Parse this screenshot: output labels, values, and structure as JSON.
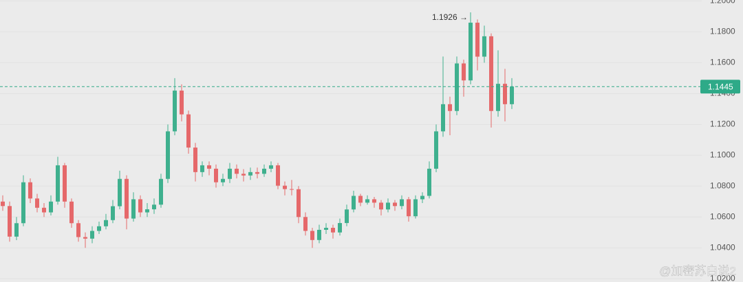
{
  "chart_data": {
    "type": "candlestick",
    "up_color": "#3fb08e",
    "down_color": "#e5686a",
    "ylim": [
      1.0179,
      1.2006
    ],
    "yticks": [
      {
        "value": 1.02,
        "label": "1.0200"
      },
      {
        "value": 1.04,
        "label": "1.0400"
      },
      {
        "value": 1.06,
        "label": "1.0600"
      },
      {
        "value": 1.08,
        "label": "1.0800"
      },
      {
        "value": 1.1,
        "label": "1.1000"
      },
      {
        "value": 1.12,
        "label": "1.1200"
      },
      {
        "value": 1.14,
        "label": "1.1400"
      },
      {
        "value": 1.16,
        "label": "1.1600"
      },
      {
        "value": 1.18,
        "label": "1.1800"
      },
      {
        "value": 1.2,
        "label": "1.2000"
      }
    ],
    "open": [
      1.07,
      1.0671,
      1.0473,
      1.056,
      1.0825,
      1.072,
      1.066,
      1.063,
      1.07,
      1.0935,
      1.07,
      1.056,
      1.047,
      1.046,
      1.051,
      1.054,
      1.058,
      1.067,
      1.0847,
      1.059,
      1.0715,
      1.063,
      1.065,
      1.068,
      1.0847,
      1.1155,
      1.1419,
      1.1265,
      1.105,
      1.0891,
      1.0935,
      1.0913,
      1.0825,
      1.0847,
      1.0913,
      1.088,
      1.0869,
      1.0891,
      1.088,
      1.0913,
      1.0935,
      1.0803,
      1.0781,
      1.078,
      1.06,
      1.051,
      1.0451,
      1.0517,
      1.053,
      1.05,
      1.0561,
      1.0649,
      1.0737,
      1.0693,
      1.0715,
      1.0693,
      1.0649,
      1.0693,
      1.0671,
      1.0715,
      1.0605,
      1.0715,
      1.0737,
      1.0913,
      1.1155,
      1.1331,
      1.1287,
      1.1595,
      1.1485,
      1.1859,
      1.1639,
      1.1771,
      1.1287,
      1.1463,
      1.1331
    ],
    "high": [
      1.074,
      1.07,
      1.06,
      1.087,
      1.085,
      1.075,
      1.069,
      1.074,
      1.099,
      1.095,
      1.072,
      1.058,
      1.05,
      1.054,
      1.057,
      1.062,
      1.071,
      1.09,
      1.087,
      1.076,
      1.074,
      1.069,
      1.072,
      1.088,
      1.12,
      1.15,
      1.146,
      1.129,
      1.108,
      1.096,
      1.096,
      1.094,
      1.088,
      1.095,
      1.094,
      1.091,
      1.092,
      1.092,
      1.094,
      1.096,
      1.095,
      1.083,
      1.084,
      1.08,
      1.063,
      1.053,
      1.055,
      1.056,
      1.055,
      1.059,
      1.068,
      1.077,
      1.075,
      1.074,
      1.073,
      1.071,
      1.072,
      1.071,
      1.074,
      1.073,
      1.074,
      1.076,
      1.096,
      1.12,
      1.164,
      1.138,
      1.164,
      1.162,
      1.1926,
      1.188,
      1.184,
      1.179,
      1.168,
      1.156,
      1.15
    ],
    "low": [
      1.064,
      1.044,
      1.045,
      1.054,
      1.069,
      1.063,
      1.06,
      1.061,
      1.068,
      1.066,
      1.053,
      1.044,
      1.04,
      1.043,
      1.049,
      1.052,
      1.056,
      1.065,
      1.052,
      1.057,
      1.06,
      1.06,
      1.062,
      1.066,
      1.082,
      1.113,
      1.122,
      1.101,
      1.083,
      1.086,
      1.087,
      1.079,
      1.08,
      1.082,
      1.085,
      1.083,
      1.084,
      1.085,
      1.086,
      1.089,
      1.078,
      1.074,
      1.074,
      1.056,
      1.048,
      1.04,
      1.043,
      1.049,
      1.046,
      1.048,
      1.054,
      1.063,
      1.067,
      1.068,
      1.066,
      1.061,
      1.063,
      1.064,
      1.065,
      1.057,
      1.059,
      1.069,
      1.072,
      1.089,
      1.112,
      1.113,
      1.126,
      1.138,
      1.146,
      1.155,
      1.16,
      1.118,
      1.125,
      1.122,
      1.13
    ],
    "close": [
      1.0671,
      1.0473,
      1.056,
      1.0825,
      1.072,
      1.066,
      1.063,
      1.07,
      1.0935,
      1.07,
      1.056,
      1.047,
      1.046,
      1.051,
      1.054,
      1.058,
      1.067,
      1.0847,
      1.059,
      1.0715,
      1.063,
      1.065,
      1.068,
      1.0847,
      1.1155,
      1.1419,
      1.1265,
      1.105,
      1.0891,
      1.0935,
      1.0913,
      1.0825,
      1.0847,
      1.0913,
      1.088,
      1.0869,
      1.0891,
      1.088,
      1.0913,
      1.0935,
      1.0803,
      1.0781,
      1.078,
      1.06,
      1.051,
      1.0451,
      1.0517,
      1.053,
      1.05,
      1.0561,
      1.0649,
      1.0737,
      1.0693,
      1.0715,
      1.0693,
      1.0649,
      1.0693,
      1.0671,
      1.0715,
      1.0605,
      1.0715,
      1.0737,
      1.0913,
      1.1155,
      1.1331,
      1.1287,
      1.1595,
      1.1485,
      1.1859,
      1.1639,
      1.1771,
      1.1287,
      1.1463,
      1.1331,
      1.1445
    ],
    "last_price": {
      "value": 1.1445,
      "label": "1.1445",
      "color": "#2eaa88"
    },
    "annotation": {
      "value": 1.1926,
      "label": "1.1926 →"
    },
    "watermark": "@加密苏白说2"
  }
}
